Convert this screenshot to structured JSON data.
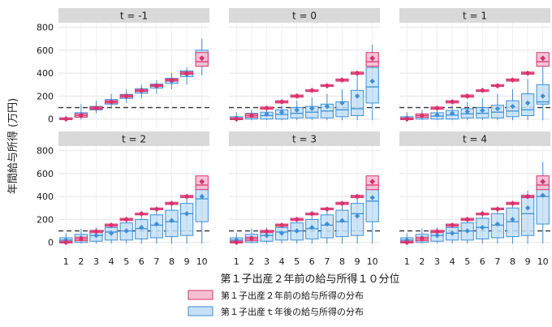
{
  "chart_data": {
    "type": "box",
    "ylabel": "年間給与所得 (万円)",
    "xlabel": "第１子出産２年前の給与所得１０分位",
    "categories": [
      "1",
      "2",
      "3",
      "4",
      "5",
      "6",
      "7",
      "8",
      "9",
      "10"
    ],
    "yticks": [
      0,
      200,
      400,
      600,
      800
    ],
    "ylim": [
      -80,
      840
    ],
    "reference_line": 100,
    "legend": [
      {
        "label": "第１子出産２年前の給与所得の分布",
        "fill": "#f6c0d2",
        "stroke": "#d8326e"
      },
      {
        "label": "第１子出産ｔ年後の給与所得の分布",
        "fill": "#c6e0f7",
        "stroke": "#3d8fd6"
      }
    ],
    "before_series": {
      "name": "第１子出産２年前の給与所得の分布",
      "color": "#d8326e",
      "fill": "#f6c0d2",
      "mean": [
        0,
        30,
        95,
        150,
        200,
        250,
        290,
        340,
        400,
        530
      ],
      "median": [
        0,
        30,
        95,
        150,
        200,
        245,
        290,
        340,
        400,
        500
      ],
      "q1": [
        -5,
        15,
        85,
        140,
        190,
        240,
        285,
        330,
        390,
        460
      ],
      "q3": [
        10,
        45,
        105,
        160,
        210,
        255,
        300,
        350,
        410,
        580
      ]
    },
    "panels": [
      {
        "title": "t = -1",
        "after": {
          "q1": [
            -2,
            20,
            80,
            130,
            180,
            225,
            270,
            310,
            370,
            480
          ],
          "median": [
            5,
            40,
            95,
            150,
            200,
            250,
            290,
            335,
            395,
            540
          ],
          "q3": [
            10,
            55,
            110,
            170,
            215,
            265,
            305,
            355,
            420,
            600
          ],
          "whisker_low": [
            -8,
            -5,
            50,
            100,
            140,
            180,
            220,
            260,
            300,
            380
          ],
          "whisker_high": [
            30,
            130,
            160,
            220,
            260,
            300,
            340,
            400,
            450,
            700
          ],
          "mean": [
            2,
            40,
            92,
            148,
            195,
            245,
            285,
            330,
            390,
            540
          ]
        }
      },
      {
        "title": "t = 0",
        "after": {
          "q1": [
            -5,
            0,
            0,
            0,
            10,
            10,
            10,
            20,
            30,
            140
          ],
          "median": [
            5,
            20,
            30,
            40,
            50,
            60,
            70,
            80,
            90,
            280
          ],
          "q3": [
            20,
            50,
            60,
            80,
            100,
            110,
            130,
            150,
            250,
            450
          ],
          "whisker_low": [
            -10,
            -10,
            -10,
            -10,
            -10,
            -10,
            -10,
            -10,
            -10,
            -10
          ],
          "whisker_high": [
            60,
            80,
            90,
            120,
            160,
            190,
            220,
            260,
            380,
            650
          ],
          "mean": [
            10,
            28,
            42,
            60,
            78,
            92,
            110,
            140,
            200,
            330
          ]
        }
      },
      {
        "title": "t = 1",
        "after": {
          "q1": [
            -5,
            0,
            0,
            0,
            10,
            10,
            10,
            20,
            30,
            130
          ],
          "median": [
            5,
            20,
            25,
            35,
            45,
            50,
            60,
            70,
            80,
            150
          ],
          "q3": [
            20,
            40,
            55,
            75,
            90,
            100,
            120,
            160,
            220,
            300
          ],
          "whisker_low": [
            -10,
            -10,
            -10,
            -10,
            -10,
            -10,
            -10,
            -10,
            -10,
            -10
          ],
          "whisker_high": [
            60,
            80,
            90,
            120,
            150,
            180,
            220,
            260,
            350,
            500
          ],
          "mean": [
            10,
            25,
            35,
            50,
            65,
            75,
            90,
            110,
            140,
            200
          ]
        }
      },
      {
        "title": "t = 2",
        "after": {
          "q1": [
            0,
            0,
            10,
            20,
            20,
            30,
            40,
            50,
            60,
            180
          ],
          "median": [
            20,
            40,
            60,
            90,
            100,
            120,
            150,
            180,
            250,
            380
          ],
          "q3": [
            40,
            70,
            100,
            130,
            170,
            200,
            240,
            280,
            340,
            480
          ],
          "whisker_low": [
            -10,
            -10,
            -10,
            -10,
            -10,
            -10,
            -10,
            -10,
            -10,
            -10
          ],
          "whisker_high": [
            80,
            120,
            130,
            170,
            200,
            240,
            280,
            320,
            400,
            560
          ],
          "mean": [
            20,
            40,
            60,
            80,
            100,
            130,
            160,
            190,
            250,
            400
          ]
        }
      },
      {
        "title": "t = 3",
        "after": {
          "q1": [
            0,
            0,
            10,
            20,
            20,
            30,
            40,
            50,
            60,
            180
          ],
          "median": [
            20,
            40,
            60,
            90,
            100,
            120,
            150,
            180,
            250,
            360
          ],
          "q3": [
            40,
            70,
            100,
            130,
            170,
            200,
            240,
            280,
            340,
            480
          ],
          "whisker_low": [
            -10,
            -10,
            -10,
            -10,
            -10,
            -10,
            -10,
            -10,
            -10,
            -10
          ],
          "whisker_high": [
            80,
            120,
            130,
            170,
            200,
            240,
            280,
            320,
            400,
            560
          ],
          "mean": [
            20,
            40,
            60,
            80,
            100,
            130,
            160,
            190,
            230,
            390
          ]
        }
      },
      {
        "title": "t = 4",
        "after": {
          "q1": [
            0,
            0,
            10,
            20,
            20,
            30,
            40,
            50,
            60,
            160
          ],
          "median": [
            20,
            40,
            60,
            80,
            100,
            130,
            150,
            180,
            250,
            400
          ],
          "q3": [
            40,
            70,
            100,
            130,
            170,
            210,
            250,
            300,
            410,
            520
          ],
          "whisker_low": [
            -10,
            -10,
            -10,
            -10,
            -10,
            -10,
            -10,
            -10,
            -10,
            -10
          ],
          "whisker_high": [
            80,
            120,
            130,
            170,
            210,
            250,
            300,
            350,
            450,
            700
          ],
          "mean": [
            20,
            40,
            60,
            80,
            100,
            130,
            160,
            200,
            300,
            410
          ]
        }
      }
    ]
  }
}
